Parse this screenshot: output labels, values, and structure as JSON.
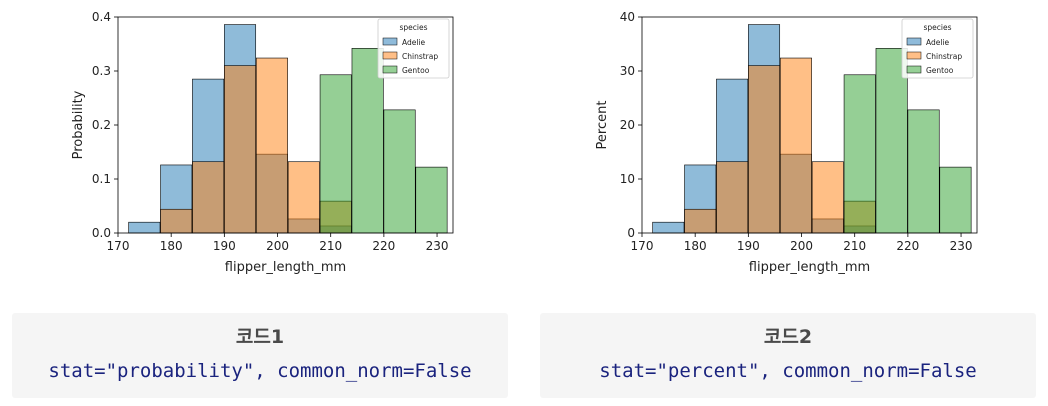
{
  "chart_data": [
    {
      "type": "bar",
      "stat": "probability",
      "xlabel": "flipper_length_mm",
      "ylabel": "Probability",
      "xlim": [
        170,
        233
      ],
      "ylim": [
        0,
        0.4
      ],
      "xticks": [
        "170",
        "180",
        "190",
        "200",
        "210",
        "220",
        "230"
      ],
      "yticks": [
        "0.0",
        "0.1",
        "0.2",
        "0.3",
        "0.4"
      ],
      "legend": {
        "title": "species",
        "position": "top-right"
      },
      "bins": [
        172,
        178,
        184,
        190,
        196,
        202,
        208,
        214,
        220,
        226
      ],
      "bin_width": 5.9,
      "series": [
        {
          "name": "Adelie",
          "color": "#1f77b4",
          "values": [
            0.02,
            0.126,
            0.285,
            0.386,
            0.146,
            0.026,
            0.013,
            0,
            0,
            0
          ]
        },
        {
          "name": "Chinstrap",
          "color": "#ff7f0e",
          "values": [
            0,
            0.044,
            0.132,
            0.31,
            0.324,
            0.132,
            0.059,
            0,
            0,
            0
          ]
        },
        {
          "name": "Gentoo",
          "color": "#2ca02c",
          "values": [
            0,
            0,
            0,
            0,
            0,
            0,
            0.293,
            0.342,
            0.228,
            0.122
          ]
        }
      ]
    },
    {
      "type": "bar",
      "stat": "percent",
      "xlabel": "flipper_length_mm",
      "ylabel": "Percent",
      "xlim": [
        170,
        233
      ],
      "ylim": [
        0,
        40
      ],
      "xticks": [
        "170",
        "180",
        "190",
        "200",
        "210",
        "220",
        "230"
      ],
      "yticks": [
        "0",
        "10",
        "20",
        "30",
        "40"
      ],
      "legend": {
        "title": "species",
        "position": "top-right"
      },
      "bins": [
        172,
        178,
        184,
        190,
        196,
        202,
        208,
        214,
        220,
        226
      ],
      "bin_width": 5.9,
      "series": [
        {
          "name": "Adelie",
          "color": "#1f77b4",
          "values": [
            2.0,
            12.6,
            28.5,
            38.6,
            14.6,
            2.6,
            1.3,
            0,
            0,
            0
          ]
        },
        {
          "name": "Chinstrap",
          "color": "#ff7f0e",
          "values": [
            0,
            4.4,
            13.2,
            31.0,
            32.4,
            13.2,
            5.9,
            0,
            0,
            0
          ]
        },
        {
          "name": "Gentoo",
          "color": "#2ca02c",
          "values": [
            0,
            0,
            0,
            0,
            0,
            0,
            29.3,
            34.2,
            22.8,
            12.2
          ]
        }
      ]
    }
  ],
  "captions": [
    {
      "title": "코드1",
      "code": "stat=\"probability\", common_norm=False"
    },
    {
      "title": "코드2",
      "code": "stat=\"percent\", common_norm=False"
    }
  ]
}
